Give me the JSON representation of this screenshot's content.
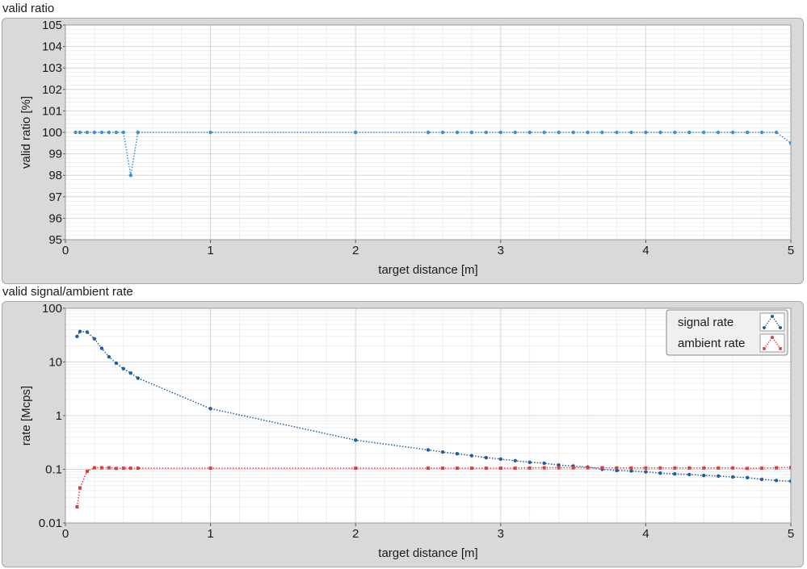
{
  "chart_data": [
    {
      "type": "line",
      "panel_title": "valid ratio",
      "xlabel": "target distance [m]",
      "ylabel": "valid ratio [%]",
      "xlim": [
        0,
        5
      ],
      "ylim": [
        95,
        105
      ],
      "yscale": "linear",
      "grid": true,
      "x_ticks": [
        "0",
        "1",
        "2",
        "3",
        "4",
        "5"
      ],
      "y_ticks": [
        "95",
        "96",
        "97",
        "98",
        "99",
        "100",
        "101",
        "102",
        "103",
        "104",
        "105"
      ],
      "colors": {
        "series": "#3a8fdc",
        "grid_major": "#d8d8d8",
        "grid_minor": "#efefef",
        "plot_bg": "#ffffff",
        "panel_bg": "#d9d9d9"
      },
      "series": [
        {
          "x": [
            0.07,
            0.1,
            0.15,
            0.2,
            0.25,
            0.3,
            0.35,
            0.4,
            0.45,
            0.5,
            1.0,
            2.0,
            2.5,
            2.6,
            2.7,
            2.8,
            2.9,
            3.0,
            3.1,
            3.2,
            3.3,
            3.4,
            3.5,
            3.6,
            3.7,
            3.8,
            3.9,
            4.0,
            4.1,
            4.2,
            4.3,
            4.4,
            4.5,
            4.6,
            4.7,
            4.8,
            4.9,
            5.0
          ],
          "values": [
            100,
            100,
            100,
            100,
            100,
            100,
            100,
            100,
            98,
            100,
            100,
            100,
            100,
            100,
            100,
            100,
            100,
            100,
            100,
            100,
            100,
            100,
            100,
            100,
            100,
            100,
            100,
            100,
            100,
            100,
            100,
            100,
            100,
            100,
            100,
            100,
            100,
            99.5
          ]
        }
      ]
    },
    {
      "type": "line",
      "panel_title": "valid signal/ambient rate",
      "xlabel": "target distance [m]",
      "ylabel": "rate [Mcps]",
      "xlim": [
        0,
        5
      ],
      "ylim": [
        0.01,
        100
      ],
      "yscale": "log",
      "grid": true,
      "legend_position": "top-right",
      "x_ticks": [
        "0",
        "1",
        "2",
        "3",
        "4",
        "5"
      ],
      "y_ticks": [
        "0.01",
        "0.1",
        "1",
        "10",
        "100"
      ],
      "colors": {
        "grid_major": "#d8d8d8",
        "grid_minor": "#efefef",
        "plot_bg": "#ffffff",
        "panel_bg": "#d9d9d9"
      },
      "series": [
        {
          "name": "signal rate",
          "color": "#1f5fa0",
          "marker": "circle",
          "x": [
            0.08,
            0.1,
            0.15,
            0.2,
            0.25,
            0.3,
            0.35,
            0.4,
            0.45,
            0.5,
            1.0,
            2.0,
            2.5,
            2.6,
            2.7,
            2.8,
            2.9,
            3.0,
            3.1,
            3.2,
            3.3,
            3.4,
            3.5,
            3.6,
            3.7,
            3.8,
            3.9,
            4.0,
            4.1,
            4.2,
            4.3,
            4.4,
            4.5,
            4.6,
            4.7,
            4.8,
            4.9,
            5.0
          ],
          "values": [
            30,
            37,
            36,
            27,
            18,
            12.5,
            9.5,
            7.5,
            6.2,
            5.0,
            1.35,
            0.35,
            0.23,
            0.21,
            0.195,
            0.18,
            0.165,
            0.155,
            0.145,
            0.135,
            0.13,
            0.12,
            0.115,
            0.11,
            0.1,
            0.095,
            0.093,
            0.09,
            0.085,
            0.082,
            0.08,
            0.077,
            0.075,
            0.072,
            0.07,
            0.065,
            0.062,
            0.06
          ]
        },
        {
          "name": "ambient rate",
          "color": "#e03c3c",
          "marker": "square",
          "x": [
            0.08,
            0.1,
            0.15,
            0.2,
            0.25,
            0.3,
            0.35,
            0.4,
            0.45,
            0.5,
            1.0,
            2.0,
            2.5,
            2.6,
            2.7,
            2.8,
            2.9,
            3.0,
            3.1,
            3.2,
            3.3,
            3.4,
            3.5,
            3.6,
            3.7,
            3.8,
            3.9,
            4.0,
            4.1,
            4.2,
            4.3,
            4.4,
            4.5,
            4.6,
            4.7,
            4.8,
            4.9,
            5.0
          ],
          "values": [
            0.02,
            0.045,
            0.092,
            0.107,
            0.107,
            0.107,
            0.104,
            0.105,
            0.105,
            0.105,
            0.105,
            0.105,
            0.105,
            0.105,
            0.105,
            0.105,
            0.105,
            0.105,
            0.105,
            0.106,
            0.107,
            0.107,
            0.107,
            0.107,
            0.107,
            0.106,
            0.106,
            0.106,
            0.106,
            0.106,
            0.106,
            0.106,
            0.106,
            0.106,
            0.104,
            0.105,
            0.107,
            0.108
          ]
        }
      ]
    }
  ]
}
